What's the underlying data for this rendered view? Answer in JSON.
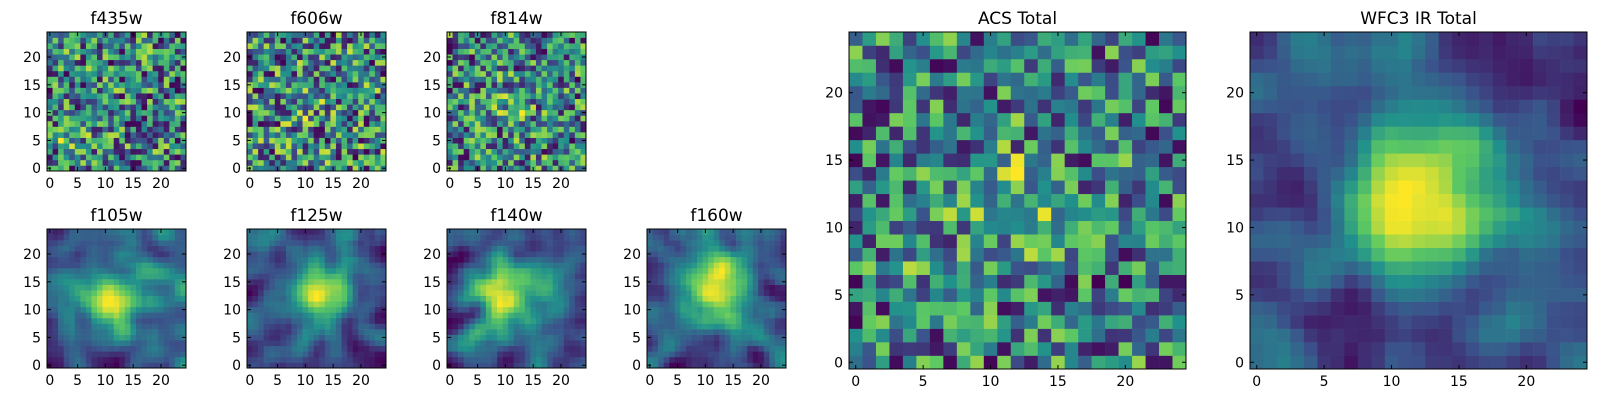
{
  "figure": {
    "background": "#ffffff"
  },
  "colormap": {
    "name": "viridis",
    "stops": [
      "#440154",
      "#3b528b",
      "#21918c",
      "#5ec962",
      "#fde725"
    ]
  },
  "chart_data": [
    {
      "type": "heatmap",
      "title": "f435w",
      "grid_size": 25,
      "xlim": [
        0,
        24
      ],
      "ylim": [
        0,
        24
      ],
      "xticks": [
        0,
        5,
        10,
        15,
        20
      ],
      "yticks": [
        0,
        5,
        10,
        15,
        20
      ],
      "style": "noise",
      "blobs": [
        {
          "x": 4,
          "y": 6,
          "sigma": 2.0,
          "amp": 0.25
        }
      ]
    },
    {
      "type": "heatmap",
      "title": "f606w",
      "grid_size": 25,
      "xlim": [
        0,
        24
      ],
      "ylim": [
        0,
        24
      ],
      "xticks": [
        0,
        5,
        10,
        15,
        20
      ],
      "yticks": [
        0,
        5,
        10,
        15,
        20
      ],
      "style": "noise",
      "blobs": [
        {
          "x": 10,
          "y": 12,
          "sigma": 2.5,
          "amp": 0.2
        }
      ]
    },
    {
      "type": "heatmap",
      "title": "f814w",
      "grid_size": 25,
      "xlim": [
        0,
        24
      ],
      "ylim": [
        0,
        24
      ],
      "xticks": [
        0,
        5,
        10,
        15,
        20
      ],
      "yticks": [
        0,
        5,
        10,
        15,
        20
      ],
      "style": "noise",
      "blobs": [
        {
          "x": 11,
          "y": 12,
          "sigma": 2.5,
          "amp": 0.25
        }
      ]
    },
    {
      "type": "heatmap",
      "title": "f105w",
      "grid_size": 25,
      "xlim": [
        0,
        24
      ],
      "ylim": [
        0,
        24
      ],
      "xticks": [
        0,
        5,
        10,
        15,
        20
      ],
      "yticks": [
        0,
        5,
        10,
        15,
        20
      ],
      "style": "smooth",
      "blobs": [
        {
          "x": 11,
          "y": 12,
          "sigma": 4.0,
          "amp": 0.5
        }
      ]
    },
    {
      "type": "heatmap",
      "title": "f125w",
      "grid_size": 25,
      "xlim": [
        0,
        24
      ],
      "ylim": [
        0,
        24
      ],
      "xticks": [
        0,
        5,
        10,
        15,
        20
      ],
      "yticks": [
        0,
        5,
        10,
        15,
        20
      ],
      "style": "smooth",
      "blobs": [
        {
          "x": 13,
          "y": 13,
          "sigma": 4.0,
          "amp": 0.5
        }
      ]
    },
    {
      "type": "heatmap",
      "title": "f140w",
      "grid_size": 25,
      "xlim": [
        0,
        24
      ],
      "ylim": [
        0,
        24
      ],
      "xticks": [
        0,
        5,
        10,
        15,
        20
      ],
      "yticks": [
        0,
        5,
        10,
        15,
        20
      ],
      "style": "smooth",
      "blobs": [
        {
          "x": 10,
          "y": 13,
          "sigma": 4.5,
          "amp": 0.5
        }
      ]
    },
    {
      "type": "heatmap",
      "title": "f160w",
      "grid_size": 25,
      "xlim": [
        0,
        24
      ],
      "ylim": [
        0,
        24
      ],
      "xticks": [
        0,
        5,
        10,
        15,
        20
      ],
      "yticks": [
        0,
        5,
        10,
        15,
        20
      ],
      "style": "smooth",
      "blobs": [
        {
          "x": 12,
          "y": 14,
          "sigma": 4.5,
          "amp": 0.5
        }
      ]
    },
    {
      "type": "heatmap",
      "title": "ACS Total",
      "grid_size": 25,
      "xlim": [
        0,
        24
      ],
      "ylim": [
        0,
        24
      ],
      "xticks": [
        0,
        5,
        10,
        15,
        20
      ],
      "yticks": [
        0,
        5,
        10,
        15,
        20
      ],
      "style": "noise",
      "blobs": [
        {
          "x": 11,
          "y": 12,
          "sigma": 3.0,
          "amp": 0.3
        },
        {
          "x": 4,
          "y": 7,
          "sigma": 2.0,
          "amp": 0.15
        }
      ]
    },
    {
      "type": "heatmap",
      "title": "WFC3 IR Total",
      "grid_size": 25,
      "xlim": [
        0,
        24
      ],
      "ylim": [
        0,
        24
      ],
      "xticks": [
        0,
        5,
        10,
        15,
        20
      ],
      "yticks": [
        0,
        5,
        10,
        15,
        20
      ],
      "style": "smooth",
      "blobs": [
        {
          "x": 12,
          "y": 13,
          "sigma": 4.5,
          "amp": 0.55
        }
      ]
    }
  ]
}
